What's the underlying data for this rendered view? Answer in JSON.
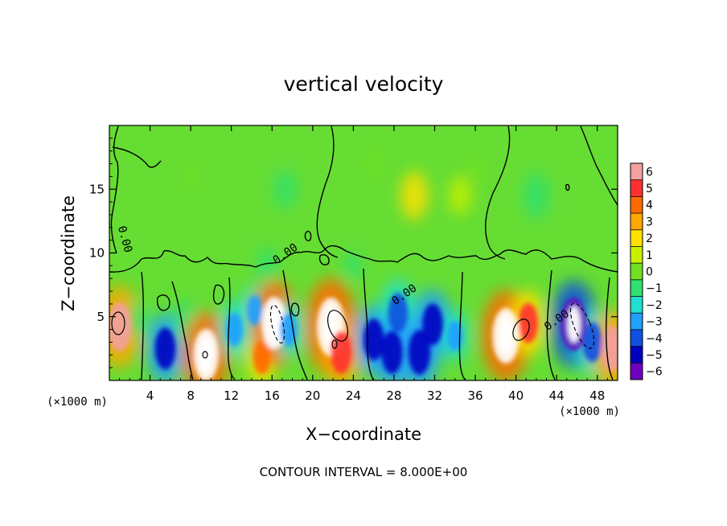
{
  "chart_data": {
    "type": "heatmap",
    "title": "vertical velocity",
    "xlabel": "X−coordinate",
    "ylabel": "Z−coordinate",
    "x_unit_left": "(×1000 m)",
    "x_unit_right": "(×1000 m)",
    "xlim": [
      0,
      50
    ],
    "ylim": [
      0,
      20
    ],
    "x_ticks": [
      4,
      8,
      12,
      16,
      20,
      24,
      28,
      32,
      36,
      40,
      44,
      48
    ],
    "x_tick_labels": [
      "4",
      "8",
      "12",
      "16",
      "20",
      "24",
      "28",
      "32",
      "36",
      "40",
      "44",
      "48"
    ],
    "y_ticks": [
      5,
      10,
      15
    ],
    "y_tick_labels": [
      "5",
      "10",
      "15"
    ],
    "colorbar": {
      "levels": [
        6,
        5,
        4,
        3,
        2,
        1,
        0,
        -1,
        -2,
        -3,
        -4,
        -5,
        -6
      ],
      "labels": [
        "6",
        "5",
        "4",
        "3",
        "2",
        "1",
        "0",
        "−1",
        "−2",
        "−3",
        "−4",
        "−5",
        "−6"
      ],
      "colors": [
        "#f2a0a0",
        "#ff3030",
        "#ff6a00",
        "#ffa800",
        "#ffe000",
        "#c8f000",
        "#70e020",
        "#30e070",
        "#20e0d0",
        "#20a0ff",
        "#1050e0",
        "#0000c0",
        "#7000c0"
      ]
    },
    "contour_labels": [
      {
        "text": "0.00",
        "x": 1.2,
        "y": 11.0
      },
      {
        "text": "0.00",
        "x": 17.5,
        "y": 9.7
      },
      {
        "text": "0.00",
        "x": 29.2,
        "y": 6.5
      },
      {
        "text": "0.00",
        "x": 44.2,
        "y": 4.5
      }
    ],
    "contour_interval_text": "CONTOUR INTERVAL = 8.000E+00",
    "features": [
      {
        "x": 1.0,
        "z": 4.2,
        "w": 6.0
      },
      {
        "x": 2.8,
        "z": 4.8,
        "w": -1.5
      },
      {
        "x": 5.5,
        "z": 2.5,
        "w": -4.8
      },
      {
        "x": 7.5,
        "z": 4.5,
        "w": -2.5
      },
      {
        "x": 9.5,
        "z": 2.0,
        "w": 6.5
      },
      {
        "x": 12.3,
        "z": 4.0,
        "w": -3.5
      },
      {
        "x": 14.3,
        "z": 5.5,
        "w": -3.0
      },
      {
        "x": 15.0,
        "z": 1.8,
        "w": 3.5
      },
      {
        "x": 16.2,
        "z": 4.5,
        "w": 6.5
      },
      {
        "x": 17.6,
        "z": 4.0,
        "w": -3.5
      },
      {
        "x": 21.8,
        "z": 4.2,
        "w": 7.5
      },
      {
        "x": 22.8,
        "z": 2.2,
        "w": 5.0
      },
      {
        "x": 26.0,
        "z": 3.2,
        "w": -4.8
      },
      {
        "x": 28.4,
        "z": 5.3,
        "w": -4.5
      },
      {
        "x": 27.8,
        "z": 2.2,
        "w": -5.0
      },
      {
        "x": 30.5,
        "z": 2.2,
        "w": -5.3
      },
      {
        "x": 31.8,
        "z": 4.4,
        "w": -4.8
      },
      {
        "x": 34.0,
        "z": 3.5,
        "w": -3.0
      },
      {
        "x": 39.0,
        "z": 3.5,
        "w": 7.0
      },
      {
        "x": 41.2,
        "z": 4.5,
        "w": 4.5
      },
      {
        "x": 45.7,
        "z": 4.4,
        "w": -6.5
      },
      {
        "x": 47.5,
        "z": 3.0,
        "w": -4.5
      },
      {
        "x": 49.5,
        "z": 2.5,
        "w": 5.5
      },
      {
        "x": 15.5,
        "z": 9.0,
        "w": -1.5
      },
      {
        "x": 24.0,
        "z": 9.0,
        "w": -1.0
      },
      {
        "x": 17.3,
        "z": 15.0,
        "w": -1.8
      },
      {
        "x": 30.0,
        "z": 14.5,
        "w": 2.8
      },
      {
        "x": 34.5,
        "z": 14.5,
        "w": 1.8
      },
      {
        "x": 42.0,
        "z": 14.5,
        "w": -2.5
      },
      {
        "x": 8.0,
        "z": 16.0,
        "w": -0.5
      },
      {
        "x": 36.0,
        "z": 16.5,
        "w": 0.8
      },
      {
        "x": 26.0,
        "z": 17.0,
        "w": 0.6
      }
    ]
  }
}
